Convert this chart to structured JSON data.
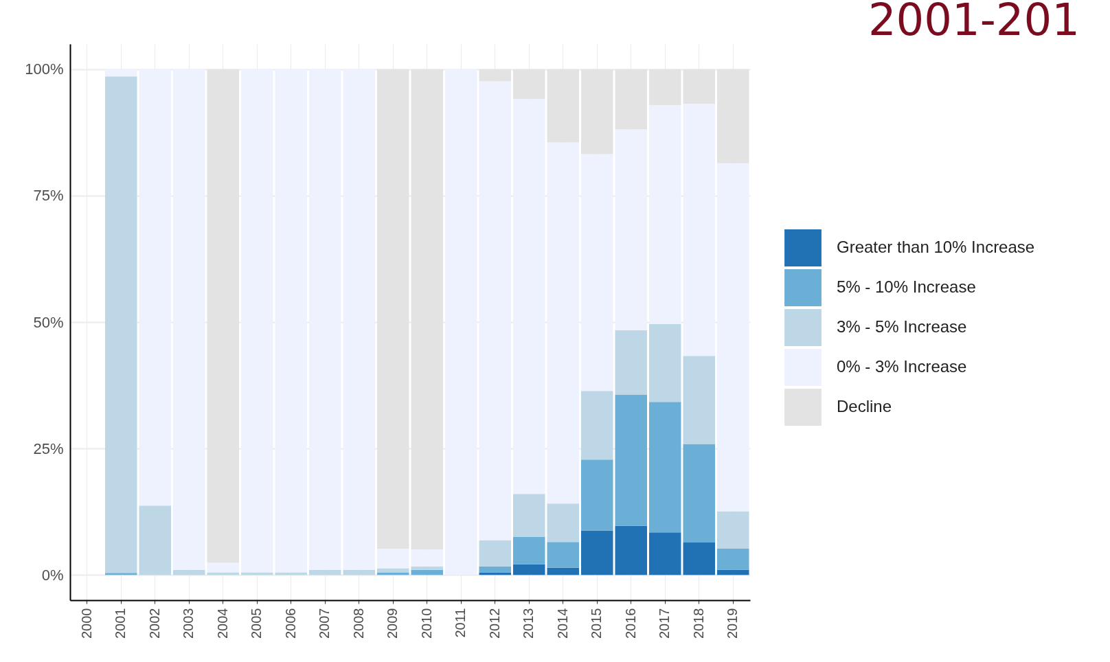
{
  "chart_data": {
    "type": "bar",
    "title": "2001-201",
    "stacked": true,
    "categories": [
      "2000",
      "2001",
      "2002",
      "2003",
      "2004",
      "2005",
      "2006",
      "2007",
      "2008",
      "2009",
      "2010",
      "2011",
      "2012",
      "2013",
      "2014",
      "2015",
      "2016",
      "2017",
      "2018",
      "2019"
    ],
    "series": [
      {
        "name": "Greater than 10% Increase",
        "color": "#2171b5",
        "values": [
          null,
          0,
          0,
          0,
          0,
          0,
          0,
          0,
          0,
          0,
          0,
          0,
          0.5,
          2.1,
          1.4,
          8.8,
          9.7,
          8.4,
          6.4,
          1.0
        ]
      },
      {
        "name": "5% - 10% Increase",
        "color": "#6baed6",
        "values": [
          null,
          0.4,
          0,
          0,
          0,
          0,
          0,
          0,
          0,
          0.5,
          1.0,
          0,
          1.2,
          5.4,
          5.1,
          14.0,
          25.9,
          25.8,
          19.5,
          4.2
        ]
      },
      {
        "name": "3% - 5% Increase",
        "color": "#bdd7e7",
        "values": [
          null,
          98.2,
          13.7,
          1.0,
          0.5,
          0.5,
          0.5,
          1.0,
          1.0,
          0.8,
          0.7,
          0,
          5.1,
          8.5,
          7.6,
          13.6,
          12.8,
          15.4,
          17.4,
          7.4
        ]
      },
      {
        "name": "0% - 3% Increase",
        "color": "#eef2fe",
        "values": [
          null,
          1.4,
          86.3,
          99.0,
          1.9,
          99.5,
          99.5,
          99.0,
          99.0,
          3.9,
          3.3,
          100,
          90.8,
          78.1,
          71.4,
          46.8,
          39.7,
          43.3,
          49.9,
          68.8
        ]
      },
      {
        "name": "Decline",
        "color": "#e3e3e3",
        "values": [
          null,
          0,
          0,
          0,
          97.6,
          0,
          0,
          0,
          0,
          94.8,
          95.0,
          0,
          2.4,
          5.9,
          14.5,
          16.8,
          11.9,
          7.1,
          6.8,
          18.6
        ]
      }
    ],
    "ylim": [
      -5,
      105
    ],
    "yticks": [
      {
        "value": 0,
        "label": "0%"
      },
      {
        "value": 25,
        "label": "25%"
      },
      {
        "value": 50,
        "label": "50%"
      },
      {
        "value": 75,
        "label": "75%"
      },
      {
        "value": 100,
        "label": "100%"
      }
    ],
    "grid": true,
    "legend": "right"
  }
}
